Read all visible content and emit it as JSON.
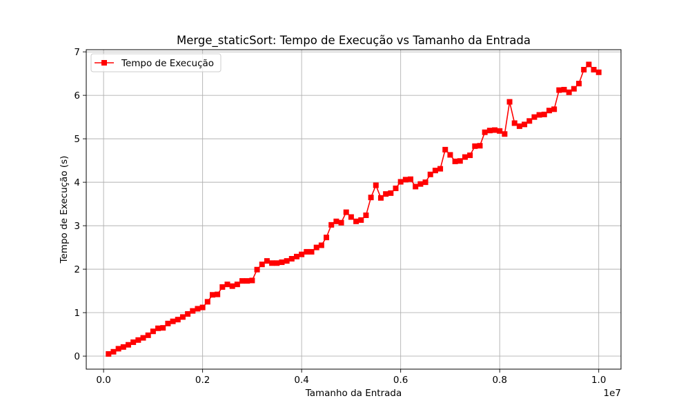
{
  "chart_data": {
    "type": "line",
    "title": "Merge_staticSort: Tempo de Execução vs Tamanho da Entrada",
    "xlabel": "Tamanho da Entrada",
    "ylabel": "Tempo de Execução (s)",
    "x_offset_label": "1e7",
    "xlim": [
      -350000,
      10450000
    ],
    "ylim": [
      -0.3,
      7.05
    ],
    "xticks": [
      0,
      2000000,
      4000000,
      6000000,
      8000000,
      10000000
    ],
    "xtick_labels": [
      "0.0",
      "0.2",
      "0.4",
      "0.6",
      "0.8",
      "1.0"
    ],
    "yticks": [
      0,
      1,
      2,
      3,
      4,
      5,
      6,
      7
    ],
    "ytick_labels": [
      "0",
      "1",
      "2",
      "3",
      "4",
      "5",
      "6",
      "7"
    ],
    "grid": true,
    "legend": {
      "location": "upper-left"
    },
    "series": [
      {
        "name": "Tempo de Execução",
        "color": "#ff0000",
        "marker": "square",
        "x": [
          100000,
          200000,
          300000,
          400000,
          500000,
          600000,
          700000,
          800000,
          900000,
          1000000,
          1100000,
          1200000,
          1300000,
          1400000,
          1500000,
          1600000,
          1700000,
          1800000,
          1900000,
          2000000,
          2100000,
          2200000,
          2300000,
          2400000,
          2500000,
          2600000,
          2700000,
          2800000,
          2900000,
          3000000,
          3100000,
          3200000,
          3300000,
          3400000,
          3500000,
          3600000,
          3700000,
          3800000,
          3900000,
          4000000,
          4100000,
          4200000,
          4300000,
          4400000,
          4500000,
          4600000,
          4700000,
          4800000,
          4900000,
          5000000,
          5100000,
          5200000,
          5300000,
          5400000,
          5500000,
          5600000,
          5700000,
          5800000,
          5900000,
          6000000,
          6100000,
          6200000,
          6300000,
          6400000,
          6500000,
          6600000,
          6700000,
          6800000,
          6900000,
          7000000,
          7100000,
          7200000,
          7300000,
          7400000,
          7500000,
          7600000,
          7700000,
          7800000,
          7900000,
          8000000,
          8100000,
          8200000,
          8300000,
          8400000,
          8500000,
          8600000,
          8700000,
          8800000,
          8900000,
          9000000,
          9100000,
          9200000,
          9300000,
          9400000,
          9500000,
          9600000,
          9700000,
          9800000,
          9900000,
          10000000
        ],
        "y": [
          0.05,
          0.1,
          0.17,
          0.21,
          0.26,
          0.32,
          0.37,
          0.42,
          0.48,
          0.57,
          0.64,
          0.65,
          0.75,
          0.8,
          0.84,
          0.9,
          0.97,
          1.04,
          1.09,
          1.12,
          1.25,
          1.41,
          1.42,
          1.59,
          1.65,
          1.61,
          1.65,
          1.73,
          1.73,
          1.74,
          1.99,
          2.11,
          2.19,
          2.14,
          2.14,
          2.16,
          2.19,
          2.24,
          2.29,
          2.34,
          2.4,
          2.4,
          2.5,
          2.55,
          2.73,
          3.02,
          3.1,
          3.07,
          3.31,
          3.2,
          3.1,
          3.13,
          3.24,
          3.65,
          3.93,
          3.64,
          3.73,
          3.75,
          3.86,
          4.01,
          4.06,
          4.07,
          3.9,
          3.96,
          4.0,
          4.18,
          4.27,
          4.31,
          4.75,
          4.63,
          4.48,
          4.49,
          4.58,
          4.62,
          4.83,
          4.84,
          5.15,
          5.19,
          5.2,
          5.18,
          5.11,
          5.85,
          5.36,
          5.29,
          5.33,
          5.41,
          5.5,
          5.55,
          5.56,
          5.65,
          5.68,
          6.12,
          6.13,
          6.07,
          6.15,
          6.27,
          6.59,
          6.71,
          6.59,
          6.53
        ]
      }
    ]
  }
}
